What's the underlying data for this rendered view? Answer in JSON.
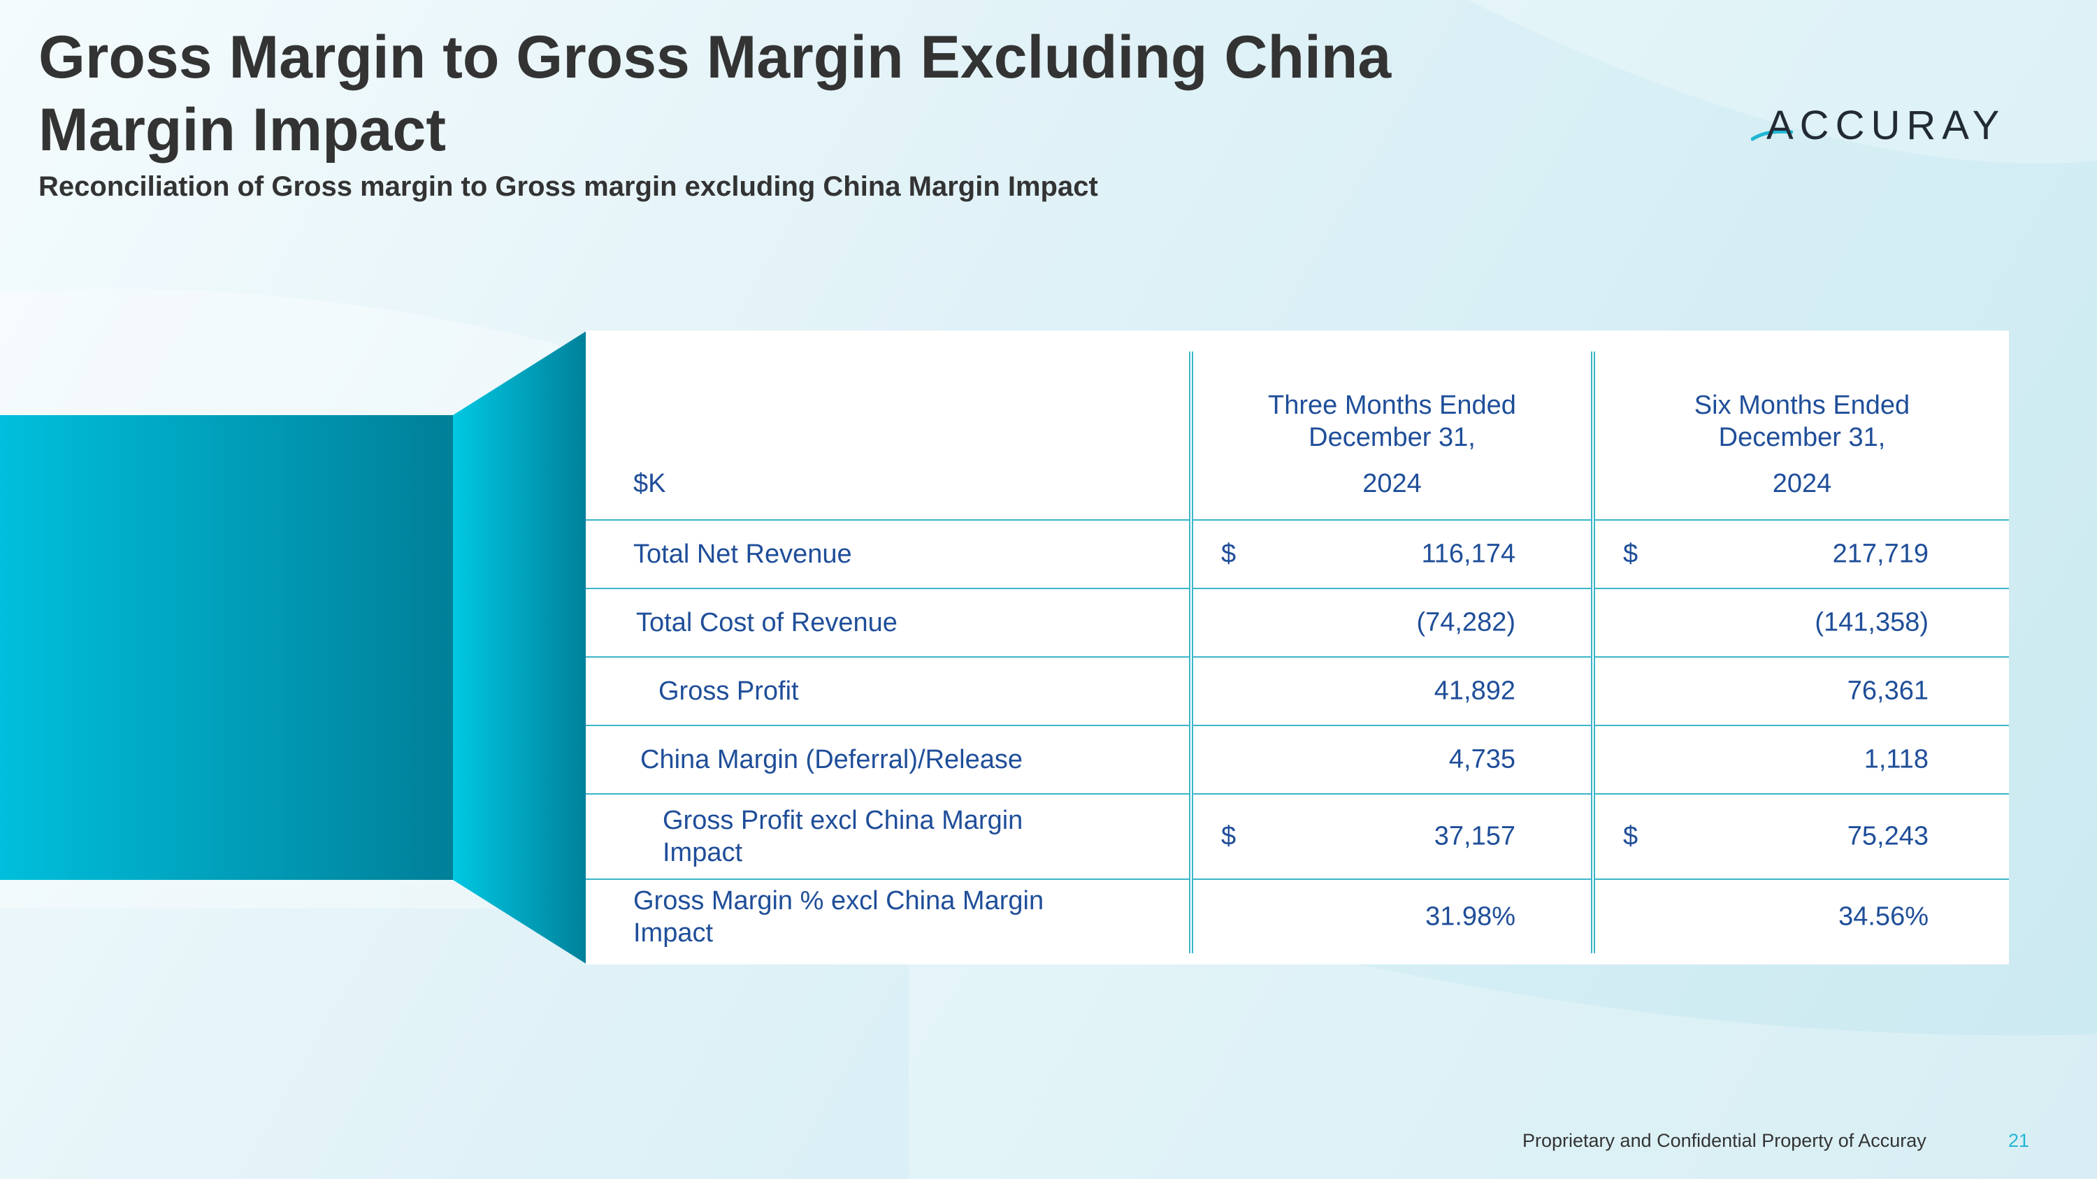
{
  "slide": {
    "title": "Gross Margin to Gross Margin Excluding China Margin Impact",
    "subtitle": "Reconciliation of Gross margin to Gross margin excluding China Margin Impact",
    "logo_text": "ACCURAY",
    "footer": "Proprietary and Confidential Property of Accuray",
    "page_number": "21"
  },
  "colors": {
    "table_text": "#1f4e99",
    "rule": "#3ab6c9",
    "accent": "#1fb6d4",
    "prism_front": "#00a6c4",
    "prism_side": "#00bcd8"
  },
  "table": {
    "unit_label": "$K",
    "columns": [
      {
        "line1": "Three Months Ended",
        "line2": "December 31,",
        "year": "2024"
      },
      {
        "line1": "Six Months Ended",
        "line2": "December 31,",
        "year": "2024"
      }
    ],
    "rows": [
      {
        "label": "Total Net Revenue",
        "cur_a": "$",
        "a": "116,174",
        "cur_b": "$",
        "b": "217,719"
      },
      {
        "label": "Total Cost of Revenue",
        "cur_a": "",
        "a": "(74,282)",
        "cur_b": "",
        "b": "(141,358)"
      },
      {
        "label": "Gross Profit",
        "cur_a": "",
        "a": "41,892",
        "cur_b": "",
        "b": "76,361"
      },
      {
        "label": "China Margin (Deferral)/Release",
        "cur_a": "",
        "a": "4,735",
        "cur_b": "",
        "b": "1,118"
      },
      {
        "label": "Gross Profit excl China Margin Impact",
        "cur_a": "$",
        "a": "37,157",
        "cur_b": "$",
        "b": "75,243"
      },
      {
        "label": "Gross Margin % excl China Margin Impact",
        "cur_a": "",
        "a": "31.98%",
        "cur_b": "",
        "b": "34.56%"
      }
    ]
  }
}
